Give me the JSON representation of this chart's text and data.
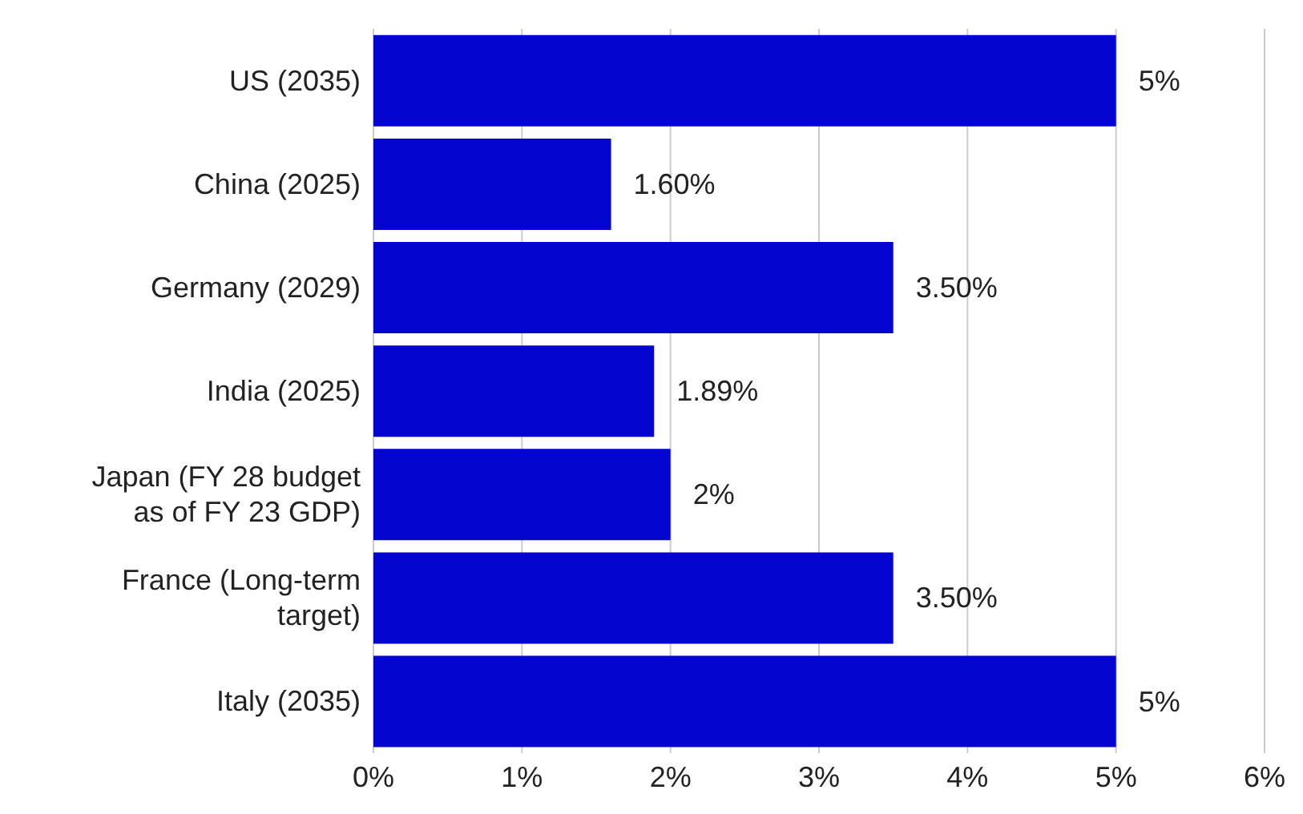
{
  "chart_data": {
    "type": "bar",
    "orientation": "horizontal",
    "categories": [
      "US (2035)",
      "China (2025)",
      "Germany (2029)",
      "India (2025)",
      "Japan (FY 28 budget as of FY 23 GDP)",
      "France (Long-term target)",
      "Italy (2035)"
    ],
    "values": [
      5,
      1.6,
      3.5,
      1.89,
      2,
      3.5,
      5
    ],
    "value_labels": [
      "5%",
      "1.60%",
      "3.50%",
      "1.89%",
      "2%",
      "3.50%",
      "5%"
    ],
    "color": "#0505d0",
    "xlim": [
      0,
      6
    ],
    "xticks": [
      {
        "value": 0,
        "label": "0%"
      },
      {
        "value": 1,
        "label": "1%"
      },
      {
        "value": 2,
        "label": "2%"
      },
      {
        "value": 3,
        "label": "3%"
      },
      {
        "value": 4,
        "label": "4%"
      },
      {
        "value": 5,
        "label": "5%"
      },
      {
        "value": 6,
        "label": "6%"
      }
    ],
    "grid": "x"
  }
}
